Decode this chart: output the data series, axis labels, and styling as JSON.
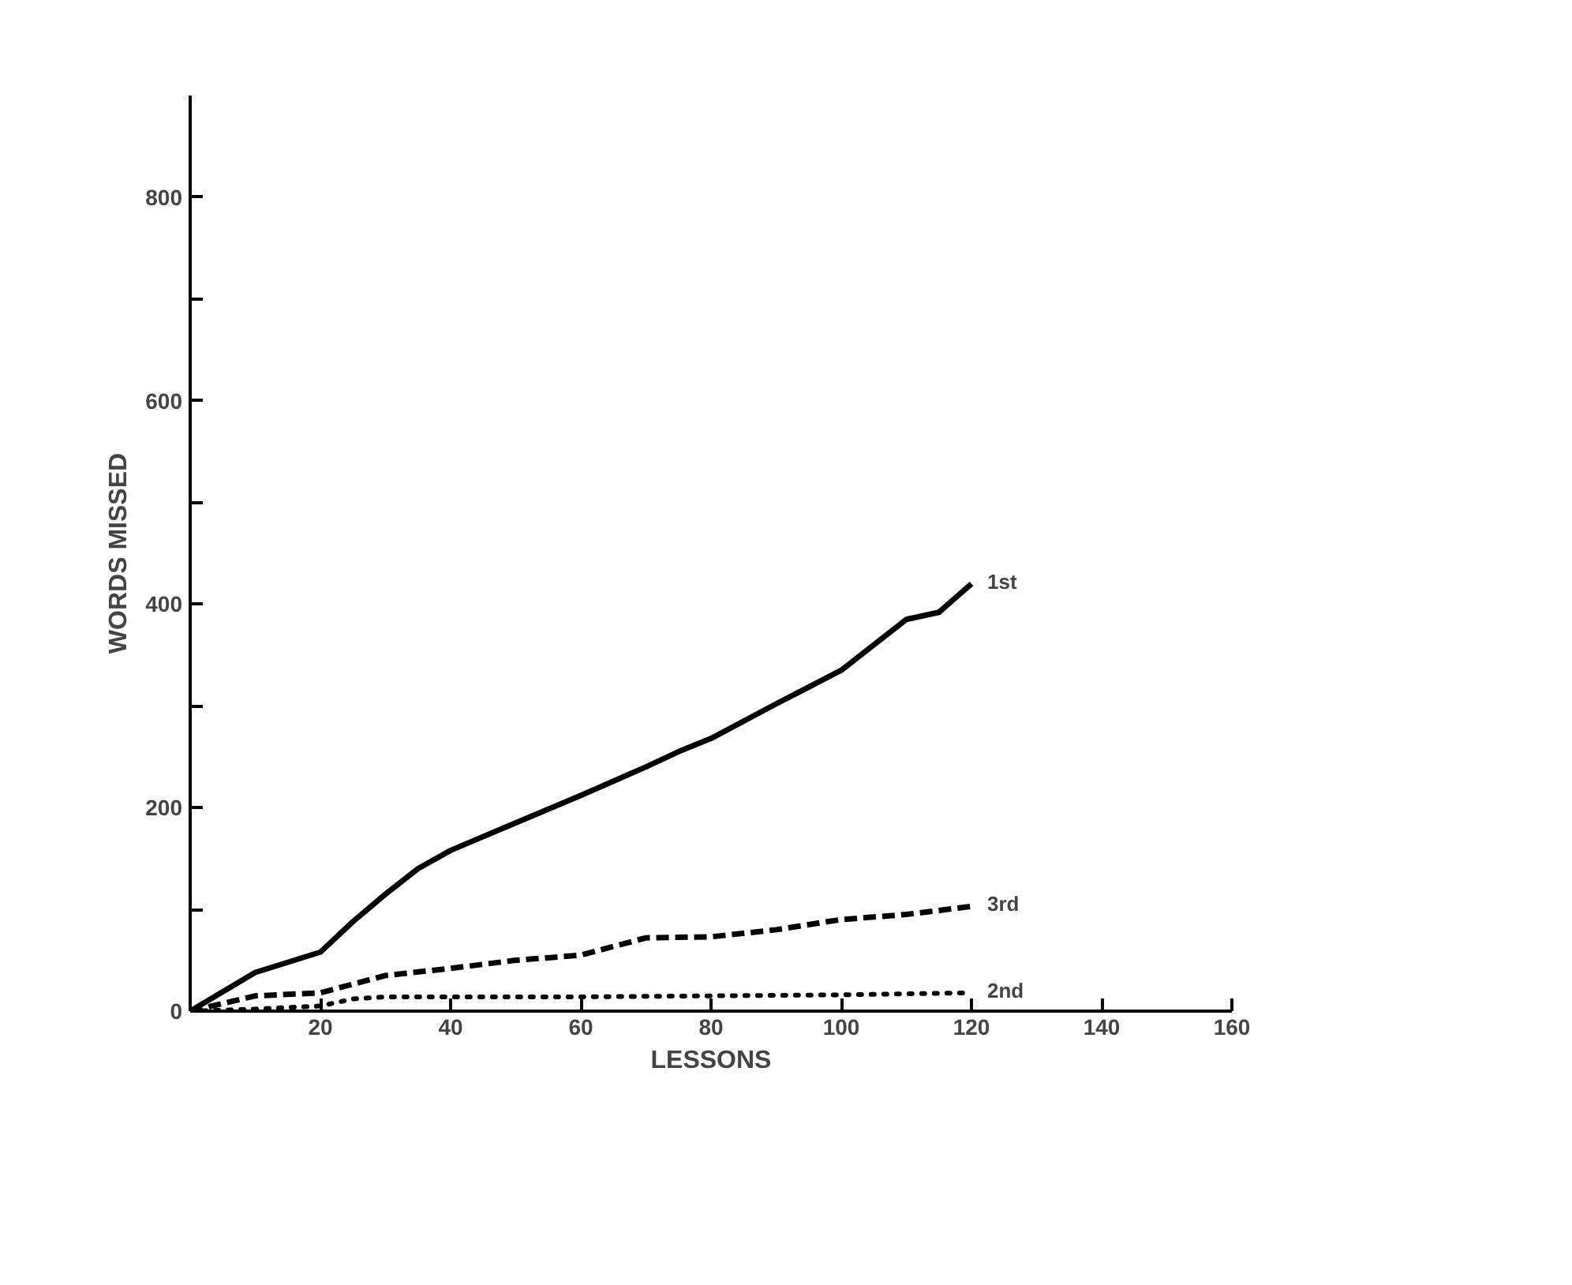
{
  "chart_data": {
    "type": "line",
    "xlabel": "LESSONS",
    "ylabel": "WORDS MISSED",
    "xlim": [
      0,
      160
    ],
    "ylim": [
      0,
      900
    ],
    "xticks": [
      20,
      40,
      60,
      80,
      100,
      120,
      140,
      160
    ],
    "yticks": [
      0,
      {
        "value": 100,
        "label": null
      },
      200,
      {
        "value": 300,
        "label": null
      },
      400,
      {
        "value": 500,
        "label": null
      },
      600,
      {
        "value": 700,
        "label": null
      },
      800
    ],
    "grid": false,
    "marker": "none",
    "series": [
      {
        "name": "1st",
        "color": "#000000",
        "line_style": "solid",
        "x": [
          0,
          10,
          20,
          25,
          30,
          35,
          40,
          50,
          60,
          70,
          75,
          80,
          90,
          100,
          105,
          110,
          115,
          120
        ],
        "values": [
          0,
          38,
          58,
          88,
          115,
          140,
          158,
          185,
          212,
          240,
          255,
          268,
          302,
          335,
          360,
          385,
          392,
          420
        ]
      },
      {
        "name": "3rd",
        "color": "#000000",
        "line_style": "dashed",
        "x": [
          0,
          10,
          20,
          30,
          40,
          50,
          60,
          70,
          80,
          90,
          100,
          110,
          120
        ],
        "values": [
          0,
          15,
          18,
          35,
          42,
          50,
          55,
          72,
          73,
          80,
          90,
          95,
          103
        ]
      },
      {
        "name": "2nd",
        "color": "#000000",
        "line_style": "dotted",
        "x": [
          0,
          10,
          20,
          25,
          30,
          60,
          80,
          100,
          120
        ],
        "values": [
          0,
          2,
          5,
          12,
          14,
          14,
          15,
          16,
          18
        ]
      }
    ]
  }
}
